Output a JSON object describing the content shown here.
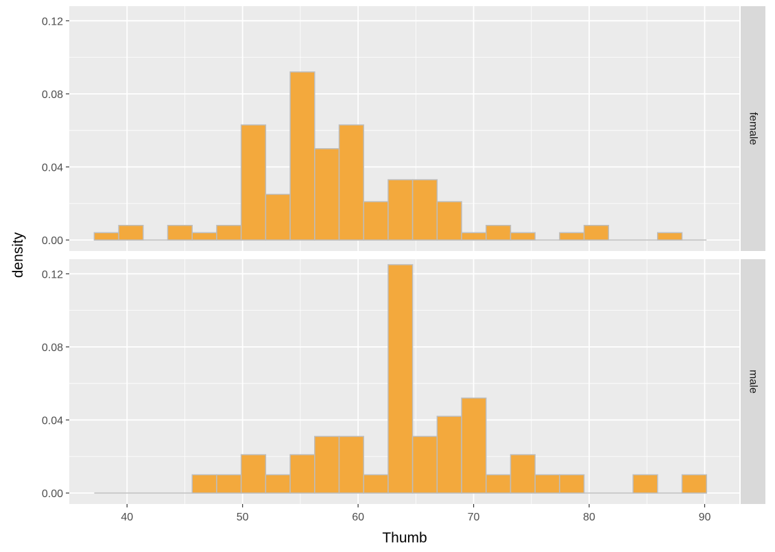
{
  "chart_data": {
    "type": "bar",
    "subtype": "faceted-histogram",
    "xlabel": "Thumb",
    "ylabel": "density",
    "xlim": [
      35,
      93
    ],
    "ylim": [
      -0.006,
      0.128
    ],
    "xticks": [
      "40",
      "50",
      "60",
      "70",
      "80",
      "90"
    ],
    "yticks": [
      "0.00",
      "0.04",
      "0.08",
      "0.12"
    ],
    "bin_width": 2.12,
    "bin_start": 37.16,
    "bar_fill": "#F3A93D",
    "bar_outline": "#BDBDBD",
    "panel_background": "#EBEBEB",
    "strip_background": "#D9D9D9",
    "grid": true,
    "facets": [
      {
        "strip_label": "female",
        "values": [
          0.004,
          0.008,
          0.0,
          0.008,
          0.004,
          0.008,
          0.063,
          0.025,
          0.092,
          0.05,
          0.063,
          0.021,
          0.033,
          0.033,
          0.021,
          0.004,
          0.008,
          0.004,
          0.0,
          0.004,
          0.008,
          0.0,
          0.0,
          0.004,
          0.0
        ]
      },
      {
        "strip_label": "male",
        "values": [
          0.0,
          0.0,
          0.0,
          0.0,
          0.01,
          0.01,
          0.021,
          0.01,
          0.021,
          0.031,
          0.031,
          0.01,
          0.125,
          0.031,
          0.042,
          0.052,
          0.01,
          0.021,
          0.01,
          0.01,
          0.0,
          0.0,
          0.01,
          0.0,
          0.01
        ]
      }
    ]
  }
}
